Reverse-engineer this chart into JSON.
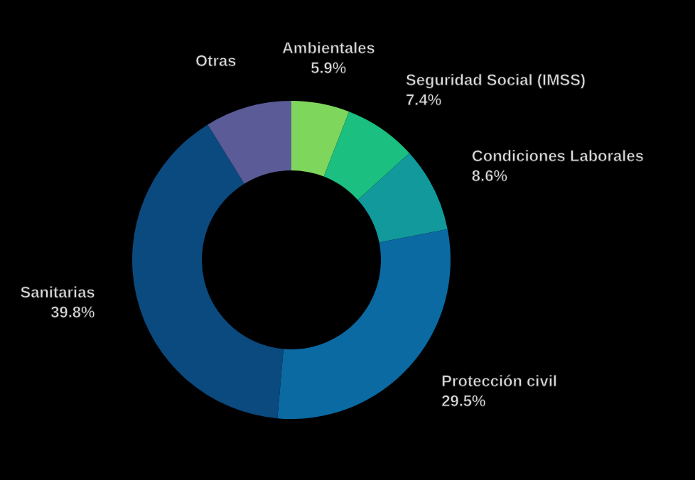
{
  "chart_data": {
    "type": "donut",
    "categories": [
      "Ambientales",
      "Seguridad Social (IMSS)",
      "Condiciones Laborales",
      "Protección civil",
      "Sanitarias",
      "Otras"
    ],
    "values": [
      5.9,
      7.4,
      8.6,
      29.5,
      39.8,
      8.8
    ],
    "value_labels": [
      "5.9%",
      "7.4%",
      "8.6%",
      "29.5%",
      "39.8%",
      null
    ],
    "colors": [
      "#7fd65c",
      "#1bbf80",
      "#12999c",
      "#0b6aa2",
      "#0a4a7e",
      "#5b5b98"
    ]
  }
}
